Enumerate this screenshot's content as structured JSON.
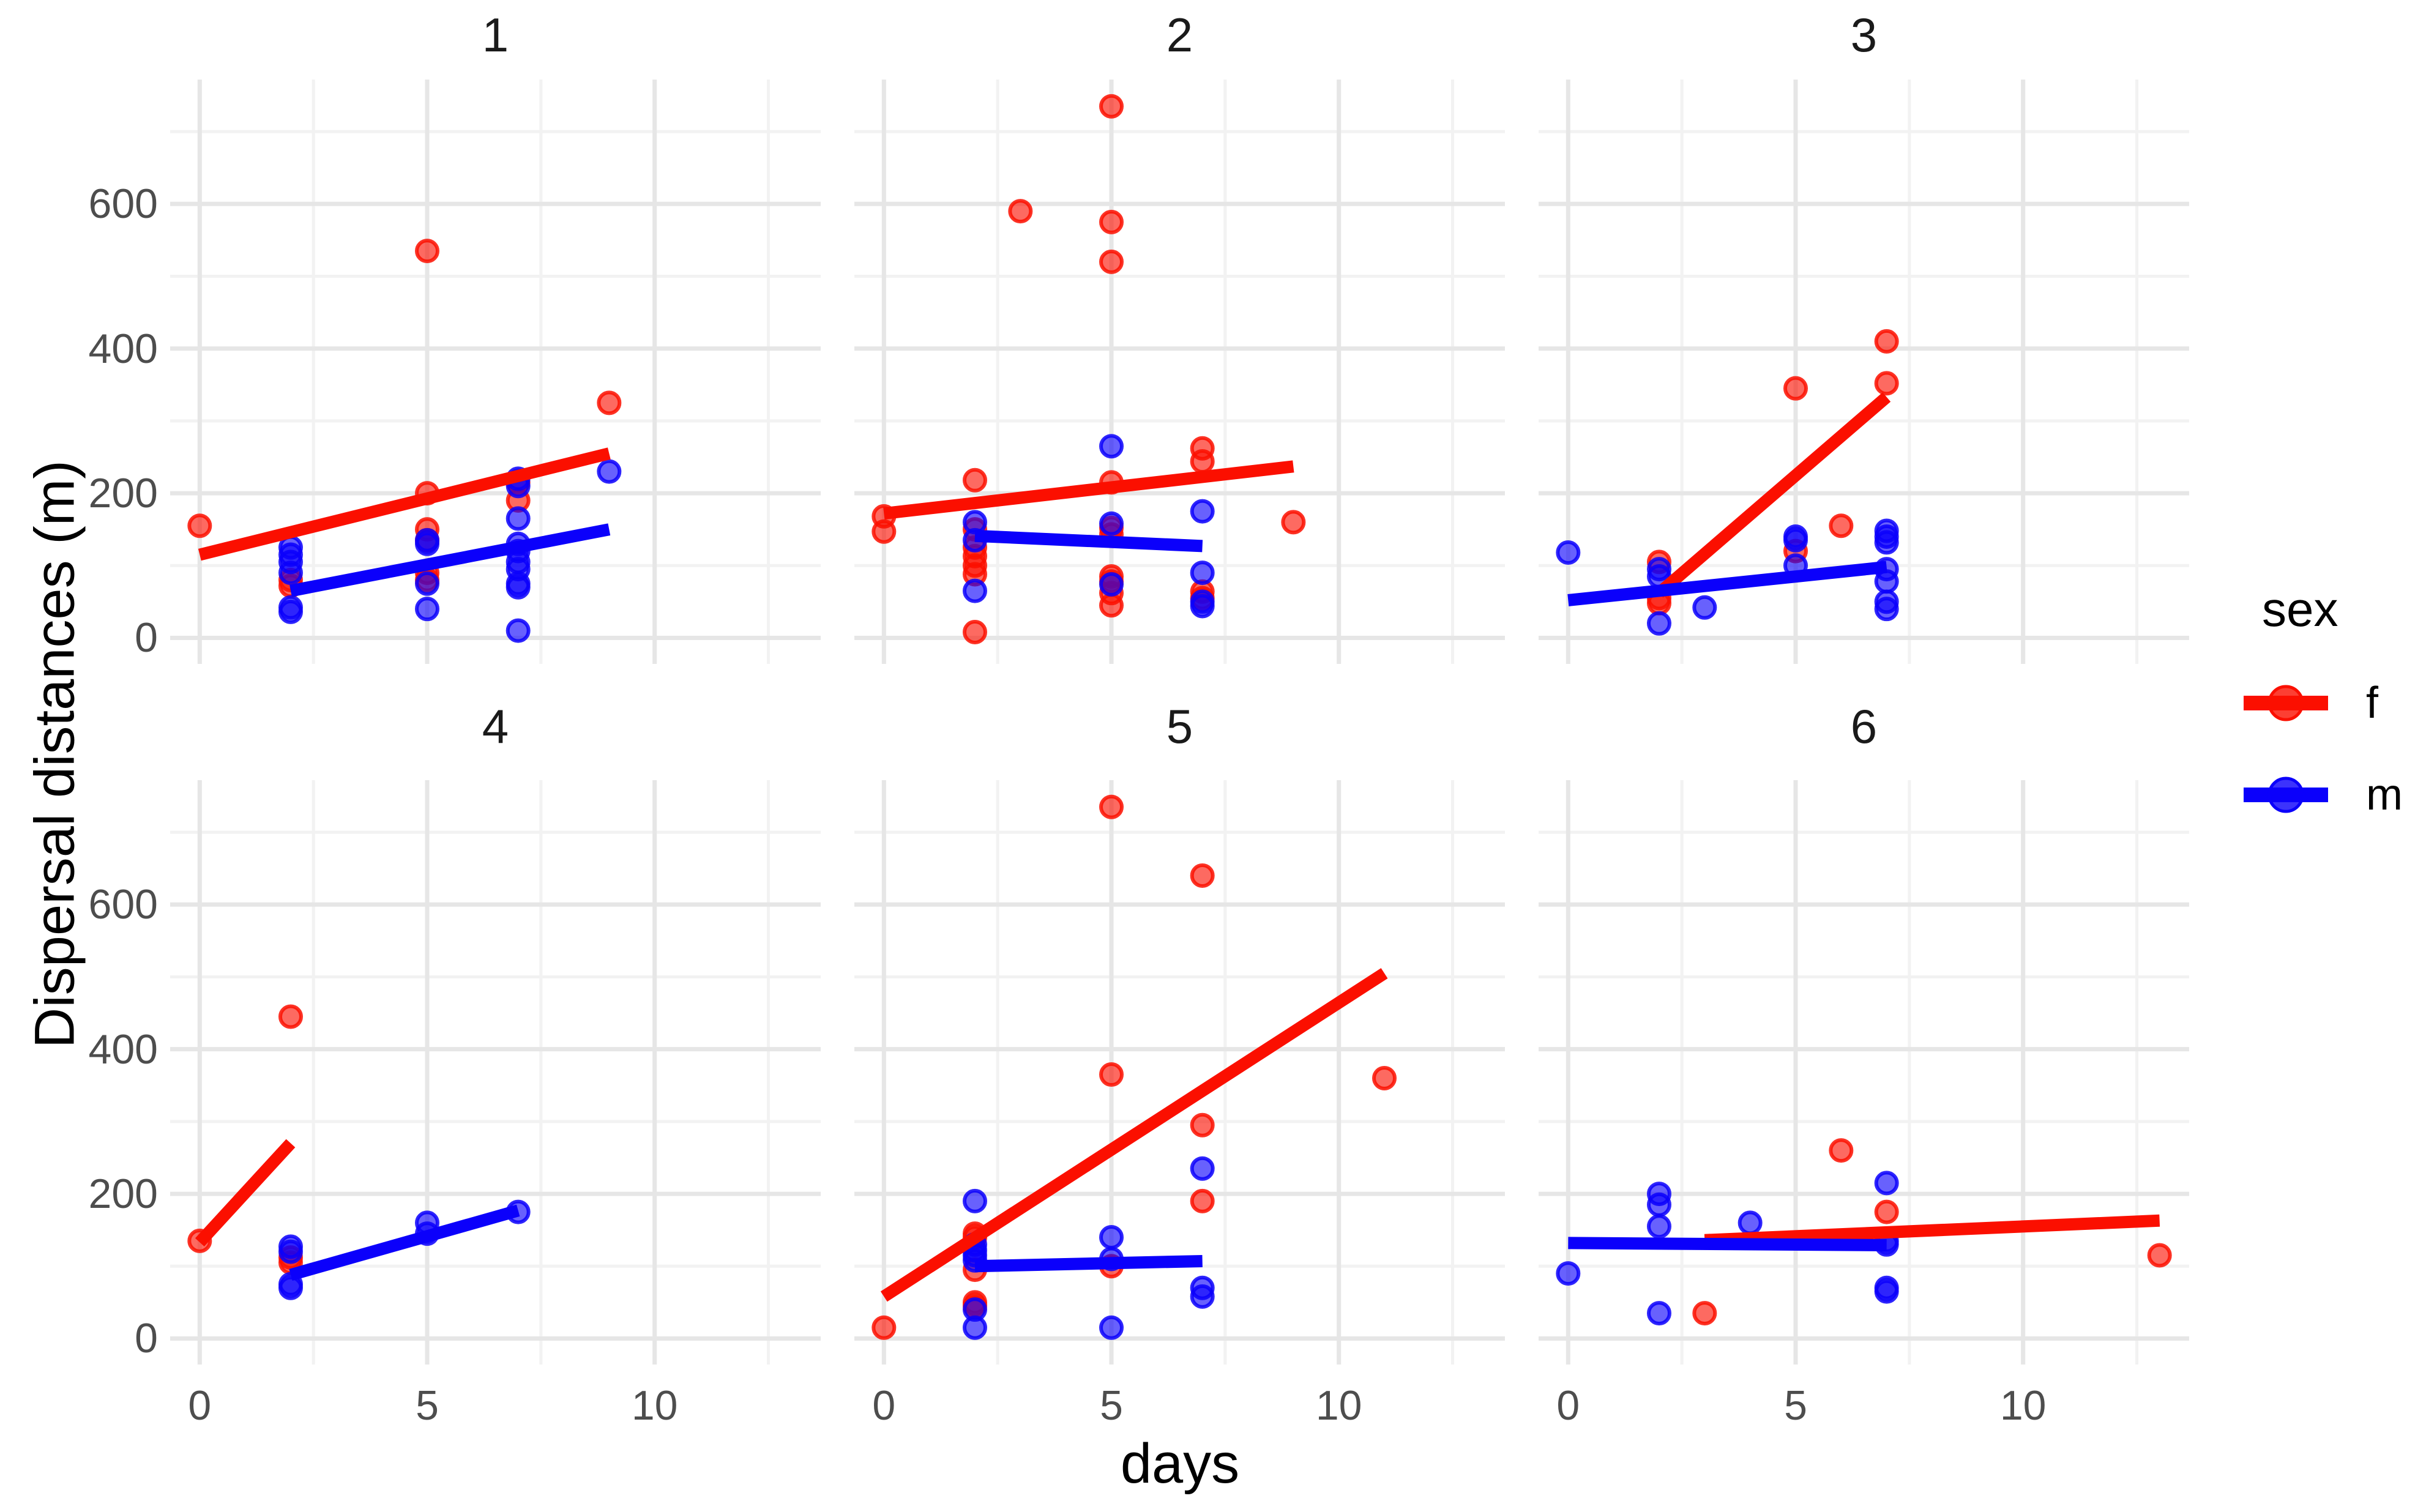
{
  "figure": {
    "background": "#FFFFFF"
  },
  "axes": {
    "x_title": "days",
    "y_title": "Dispersal distances (m)",
    "x_ticks": [
      0,
      5,
      10
    ],
    "y_ticks": [
      0,
      200,
      400,
      600
    ],
    "x_minor_ticks": [
      2.5,
      7.5,
      12.5
    ],
    "y_minor_ticks": [
      100,
      300,
      500,
      700
    ],
    "x_domain": [
      -0.65,
      13.65
    ],
    "y_domain": [
      -36,
      772
    ],
    "tick_label_color": "#4D4D4D",
    "grid_major_color": "#E6E6E6",
    "grid_minor_color": "#F2F2F2"
  },
  "legend": {
    "title": "sex",
    "entries": [
      {
        "label": "f",
        "color": "#FB0F00"
      },
      {
        "label": "m",
        "color": "#0B00FB"
      }
    ]
  },
  "chart_data": [
    {
      "type": "scatter",
      "facet": "1",
      "series": [
        {
          "name": "f",
          "points": [
            [
              0,
              155
            ],
            [
              2,
              80
            ],
            [
              2,
              72
            ],
            [
              5,
              535
            ],
            [
              5,
              200
            ],
            [
              5,
              150
            ],
            [
              5,
              135
            ],
            [
              5,
              90
            ],
            [
              5,
              80
            ],
            [
              7,
              215
            ],
            [
              7,
              190
            ],
            [
              9,
              325
            ]
          ],
          "trend": [
            [
              0,
              115
            ],
            [
              9,
              255
            ]
          ]
        },
        {
          "name": "m",
          "points": [
            [
              2,
              125
            ],
            [
              2,
              115
            ],
            [
              2,
              105
            ],
            [
              2,
              90
            ],
            [
              2,
              42
            ],
            [
              2,
              36
            ],
            [
              5,
              135
            ],
            [
              5,
              130
            ],
            [
              5,
              75
            ],
            [
              5,
              40
            ],
            [
              7,
              220
            ],
            [
              7,
              210
            ],
            [
              7,
              165
            ],
            [
              7,
              130
            ],
            [
              7,
              120
            ],
            [
              7,
              105
            ],
            [
              7,
              95
            ],
            [
              7,
              75
            ],
            [
              7,
              70
            ],
            [
              7,
              10
            ],
            [
              9,
              230
            ]
          ],
          "trend": [
            [
              2,
              65
            ],
            [
              9,
              150
            ]
          ]
        }
      ]
    },
    {
      "type": "scatter",
      "facet": "2",
      "series": [
        {
          "name": "f",
          "points": [
            [
              0,
              168
            ],
            [
              0,
              147
            ],
            [
              2,
              218
            ],
            [
              2,
              150
            ],
            [
              2,
              125
            ],
            [
              2,
              113
            ],
            [
              2,
              100
            ],
            [
              2,
              88
            ],
            [
              2,
              8
            ],
            [
              3,
              590
            ],
            [
              5,
              735
            ],
            [
              5,
              575
            ],
            [
              5,
              520
            ],
            [
              5,
              215
            ],
            [
              5,
              152
            ],
            [
              5,
              143
            ],
            [
              5,
              85
            ],
            [
              5,
              78
            ],
            [
              5,
              62
            ],
            [
              5,
              45
            ],
            [
              7,
              262
            ],
            [
              7,
              244
            ],
            [
              7,
              64
            ],
            [
              7,
              55
            ],
            [
              9,
              160
            ]
          ],
          "trend": [
            [
              0,
              172
            ],
            [
              9,
              237
            ]
          ]
        },
        {
          "name": "m",
          "points": [
            [
              2,
              160
            ],
            [
              2,
              135
            ],
            [
              2,
              65
            ],
            [
              5,
              265
            ],
            [
              5,
              158
            ],
            [
              5,
              74
            ],
            [
              7,
              175
            ],
            [
              7,
              90
            ],
            [
              7,
              50
            ],
            [
              7,
              44
            ]
          ],
          "trend": [
            [
              2,
              141
            ],
            [
              7,
              127
            ]
          ]
        }
      ]
    },
    {
      "type": "scatter",
      "facet": "3",
      "series": [
        {
          "name": "f",
          "points": [
            [
              2,
              105
            ],
            [
              2,
              55
            ],
            [
              2,
              48
            ],
            [
              5,
              120
            ],
            [
              5,
              345
            ],
            [
              6,
              155
            ],
            [
              7,
              410
            ],
            [
              7,
              352
            ]
          ],
          "trend": [
            [
              2,
              62
            ],
            [
              7,
              333
            ]
          ]
        },
        {
          "name": "m",
          "points": [
            [
              0,
              118
            ],
            [
              2,
              95
            ],
            [
              2,
              85
            ],
            [
              2,
              20
            ],
            [
              3,
              42
            ],
            [
              5,
              140
            ],
            [
              5,
              135
            ],
            [
              5,
              100
            ],
            [
              7,
              148
            ],
            [
              7,
              140
            ],
            [
              7,
              132
            ],
            [
              7,
              95
            ],
            [
              7,
              78
            ],
            [
              7,
              50
            ],
            [
              7,
              40
            ]
          ],
          "trend": [
            [
              0,
              52
            ],
            [
              7,
              98
            ]
          ]
        }
      ]
    },
    {
      "type": "scatter",
      "facet": "4",
      "series": [
        {
          "name": "f",
          "points": [
            [
              0,
              135
            ],
            [
              2,
              445
            ],
            [
              2,
              112
            ],
            [
              2,
              105
            ]
          ],
          "trend": [
            [
              0,
              133
            ],
            [
              2,
              270
            ]
          ]
        },
        {
          "name": "m",
          "points": [
            [
              2,
              127
            ],
            [
              2,
              120
            ],
            [
              2,
              75
            ],
            [
              2,
              70
            ],
            [
              5,
              160
            ],
            [
              5,
              145
            ],
            [
              7,
              175
            ]
          ],
          "trend": [
            [
              2,
              88
            ],
            [
              7,
              177
            ]
          ]
        }
      ]
    },
    {
      "type": "scatter",
      "facet": "5",
      "series": [
        {
          "name": "f",
          "points": [
            [
              0,
              15
            ],
            [
              2,
              145
            ],
            [
              2,
              140
            ],
            [
              2,
              95
            ],
            [
              2,
              50
            ],
            [
              2,
              45
            ],
            [
              5,
              735
            ],
            [
              5,
              365
            ],
            [
              5,
              100
            ],
            [
              7,
              640
            ],
            [
              7,
              295
            ],
            [
              7,
              190
            ],
            [
              11,
              360
            ]
          ],
          "trend": [
            [
              0,
              58
            ],
            [
              11,
              505
            ]
          ]
        },
        {
          "name": "m",
          "points": [
            [
              2,
              190
            ],
            [
              2,
              130
            ],
            [
              2,
              122
            ],
            [
              2,
              115
            ],
            [
              2,
              108
            ],
            [
              2,
              40
            ],
            [
              2,
              15
            ],
            [
              5,
              140
            ],
            [
              5,
              110
            ],
            [
              5,
              15
            ],
            [
              7,
              235
            ],
            [
              7,
              70
            ],
            [
              7,
              58
            ]
          ],
          "trend": [
            [
              2,
              100
            ],
            [
              7,
              107
            ]
          ]
        }
      ]
    },
    {
      "type": "scatter",
      "facet": "6",
      "series": [
        {
          "name": "f",
          "points": [
            [
              3,
              35
            ],
            [
              6,
              260
            ],
            [
              7,
              175
            ],
            [
              13,
              115
            ]
          ],
          "trend": [
            [
              3,
              136
            ],
            [
              13,
              163
            ]
          ]
        },
        {
          "name": "m",
          "points": [
            [
              0,
              90
            ],
            [
              2,
              200
            ],
            [
              2,
              185
            ],
            [
              2,
              155
            ],
            [
              2,
              35
            ],
            [
              4,
              160
            ],
            [
              7,
              215
            ],
            [
              7,
              135
            ],
            [
              7,
              130
            ],
            [
              7,
              70
            ],
            [
              7,
              65
            ]
          ],
          "trend": [
            [
              0,
              132
            ],
            [
              7,
              129
            ]
          ]
        }
      ]
    }
  ],
  "style": {
    "point_radius": 17,
    "point_fill_opacity": 0.62,
    "point_stroke_opacity": 0.85,
    "trend_width": 20
  }
}
